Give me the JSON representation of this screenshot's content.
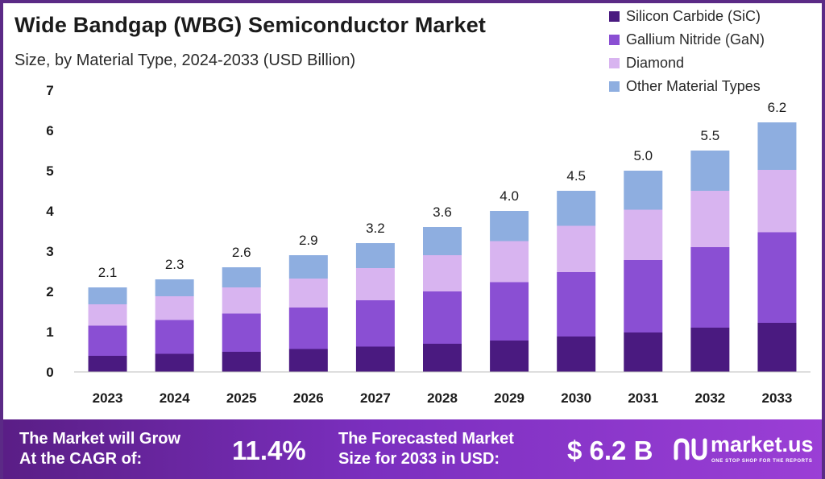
{
  "header": {
    "title": "Wide Bandgap (WBG) Semiconductor Market",
    "subtitle": "Size, by Material Type, 2024-2033 (USD Billion)"
  },
  "chart_data": {
    "type": "bar",
    "stacked": true,
    "categories": [
      "2023",
      "2024",
      "2025",
      "2026",
      "2027",
      "2028",
      "2029",
      "2030",
      "2031",
      "2032",
      "2033"
    ],
    "series": [
      {
        "name": "Silicon Carbide (SiC)",
        "color": "#4a1a80",
        "values": [
          0.4,
          0.45,
          0.5,
          0.57,
          0.63,
          0.7,
          0.78,
          0.88,
          0.98,
          1.1,
          1.22
        ]
      },
      {
        "name": "Gallium Nitride (GaN)",
        "color": "#8a4fd3",
        "values": [
          0.75,
          0.84,
          0.95,
          1.03,
          1.15,
          1.3,
          1.45,
          1.6,
          1.8,
          2.0,
          2.25
        ]
      },
      {
        "name": "Diamond",
        "color": "#d8b4f0",
        "values": [
          0.53,
          0.59,
          0.65,
          0.72,
          0.8,
          0.9,
          1.02,
          1.15,
          1.25,
          1.4,
          1.55
        ]
      },
      {
        "name": "Other Material Types",
        "color": "#8eaee0",
        "values": [
          0.42,
          0.42,
          0.5,
          0.58,
          0.62,
          0.7,
          0.75,
          0.87,
          0.97,
          1.0,
          1.18
        ]
      }
    ],
    "totals": [
      "2.1",
      "2.3",
      "2.6",
      "2.9",
      "3.2",
      "3.6",
      "4.0",
      "4.5",
      "5.0",
      "5.5",
      "6.2"
    ],
    "yticks": [
      "0",
      "1",
      "2",
      "3",
      "4",
      "5",
      "6",
      "7"
    ],
    "ylim": [
      0,
      7
    ],
    "grid": false,
    "legend_position": "top-right"
  },
  "footer": {
    "cagr_line1": "The Market will Grow",
    "cagr_line2": "At the CAGR of:",
    "cagr_value": "11.4%",
    "forecast_line1": "The Forecasted Market",
    "forecast_line2": "Size for 2033 in USD:",
    "forecast_value": "$ 6.2 B",
    "brand": "market.us",
    "brand_tagline": "ONE STOP SHOP FOR THE REPORTS"
  }
}
